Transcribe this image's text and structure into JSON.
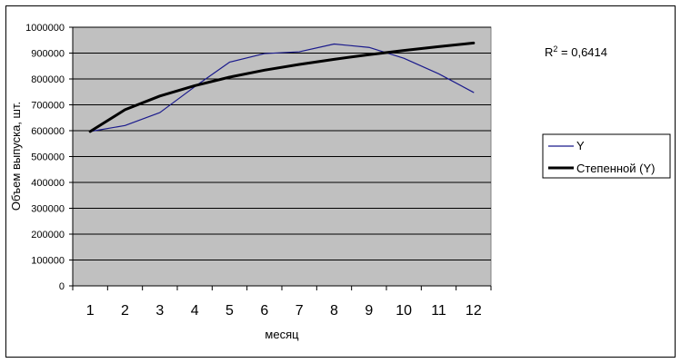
{
  "chart_data": {
    "type": "line",
    "xlabel": "месяц",
    "ylabel": "Объем выпуска, шт.",
    "categories": [
      "1",
      "2",
      "3",
      "4",
      "5",
      "6",
      "7",
      "8",
      "9",
      "10",
      "11",
      "12"
    ],
    "ylim": [
      0,
      1000000
    ],
    "yticks": [
      "0",
      "100000",
      "200000",
      "300000",
      "400000",
      "500000",
      "600000",
      "700000",
      "800000",
      "900000",
      "1000000"
    ],
    "grid": true,
    "legend_position": "right",
    "series": [
      {
        "name": "Y",
        "color": "#1a1a8c",
        "values": [
          597000,
          620000,
          670000,
          770000,
          865000,
          898000,
          905000,
          935000,
          922000,
          880000,
          820000,
          748000
        ]
      },
      {
        "name": "Степенной (Y)",
        "color": "#000000",
        "values": [
          597000,
          681000,
          734000,
          774000,
          807000,
          834000,
          856000,
          876000,
          894000,
          910000,
          925000,
          939000
        ]
      }
    ],
    "annotation": {
      "r2_prefix": "R",
      "r2_sup": "2",
      "r2_value": " = 0,6414"
    }
  }
}
